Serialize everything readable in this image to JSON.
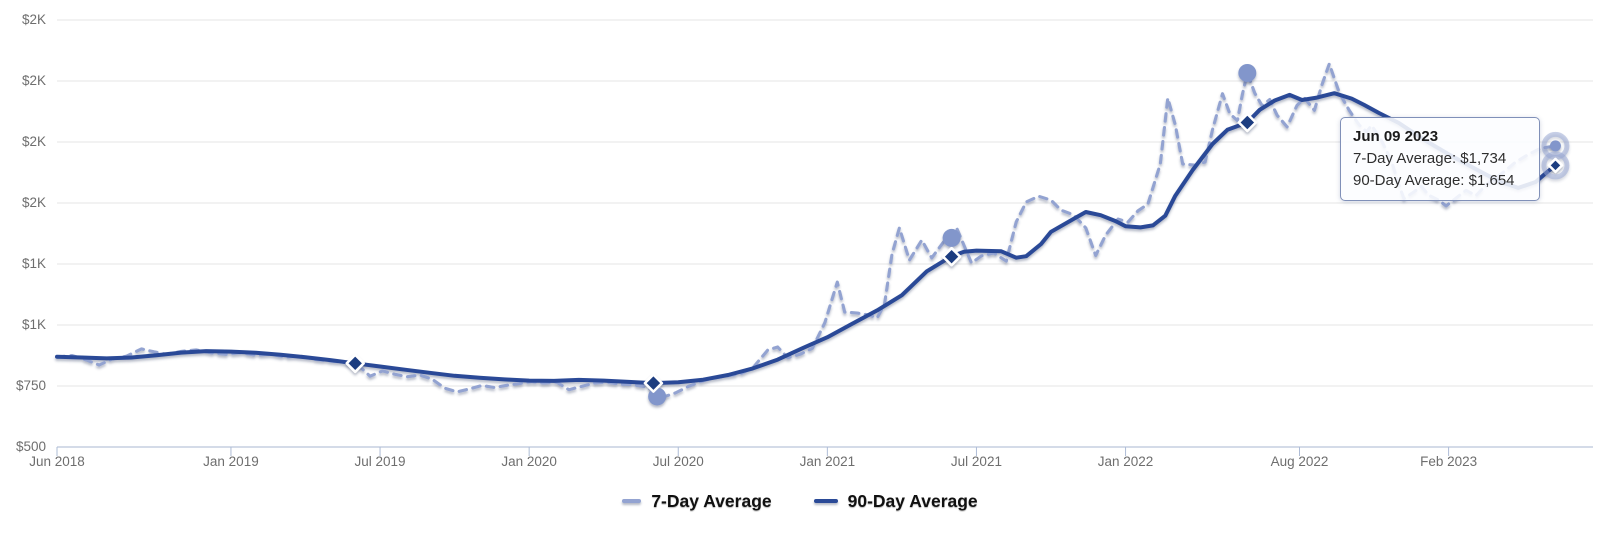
{
  "chart_data": {
    "type": "line",
    "title": "",
    "xlabel": "",
    "ylabel": "",
    "grid": true,
    "legend_position": "bottom-center",
    "x_unit": "months_since_jun_2018",
    "xlim": [
      0,
      61
    ],
    "ylim": [
      500,
      2250
    ],
    "y_axis": {
      "ticks": [
        {
          "label": "$2K",
          "value": 2250
        },
        {
          "label": "$2K",
          "value": 2000
        },
        {
          "label": "$2K",
          "value": 1750
        },
        {
          "label": "$2K",
          "value": 1500
        },
        {
          "label": "$1K",
          "value": 1250
        },
        {
          "label": "$1K",
          "value": 1000
        },
        {
          "label": "$750",
          "value": 750
        },
        {
          "label": "$500",
          "value": 500
        }
      ]
    },
    "x_axis": {
      "ticks": [
        {
          "label": "Jun 2018",
          "m": 0
        },
        {
          "label": "Jan 2019",
          "m": 7
        },
        {
          "label": "Jul 2019",
          "m": 13
        },
        {
          "label": "Jan 2020",
          "m": 19
        },
        {
          "label": "Jul 2020",
          "m": 25
        },
        {
          "label": "Jan 2021",
          "m": 31
        },
        {
          "label": "Jul 2021",
          "m": 37
        },
        {
          "label": "Jan 2022",
          "m": 43
        },
        {
          "label": "Aug 2022",
          "m": 50
        },
        {
          "label": "Feb 2023",
          "m": 56
        }
      ]
    },
    "series": [
      {
        "name": "7-Day Average",
        "style": "dashed",
        "color": "#93a3d1",
        "points": [
          [
            0,
            868
          ],
          [
            0.6,
            875
          ],
          [
            1.2,
            856
          ],
          [
            1.7,
            836
          ],
          [
            2.2,
            860
          ],
          [
            2.8,
            872
          ],
          [
            3.4,
            902
          ],
          [
            3.9,
            890
          ],
          [
            4.4,
            880
          ],
          [
            5,
            892
          ],
          [
            5.6,
            898
          ],
          [
            6.2,
            886
          ],
          [
            6.8,
            880
          ],
          [
            7.4,
            886
          ],
          [
            8,
            876
          ],
          [
            8.6,
            880
          ],
          [
            9.2,
            868
          ],
          [
            9.8,
            873
          ],
          [
            10.4,
            858
          ],
          [
            11,
            852
          ],
          [
            11.6,
            846
          ],
          [
            12.2,
            828
          ],
          [
            12.6,
            790
          ],
          [
            13.1,
            812
          ],
          [
            13.6,
            798
          ],
          [
            14.1,
            788
          ],
          [
            14.6,
            795
          ],
          [
            15.1,
            778
          ],
          [
            15.6,
            741
          ],
          [
            16.1,
            726
          ],
          [
            16.6,
            738
          ],
          [
            17.1,
            752
          ],
          [
            17.6,
            744
          ],
          [
            18.1,
            753
          ],
          [
            18.6,
            760
          ],
          [
            19.1,
            768
          ],
          [
            19.6,
            762
          ],
          [
            20.1,
            766
          ],
          [
            20.6,
            735
          ],
          [
            21.1,
            748
          ],
          [
            21.6,
            762
          ],
          [
            22.1,
            766
          ],
          [
            22.6,
            758
          ],
          [
            23.1,
            756
          ],
          [
            23.6,
            748
          ],
          [
            24,
            733
          ],
          [
            24.4,
            705
          ],
          [
            24.9,
            722
          ],
          [
            25.4,
            748
          ],
          [
            25.9,
            768
          ],
          [
            26.4,
            782
          ],
          [
            27,
            792
          ],
          [
            27.5,
            800
          ],
          [
            28,
            824
          ],
          [
            28.6,
            897
          ],
          [
            29,
            910
          ],
          [
            29.4,
            866
          ],
          [
            29.9,
            880
          ],
          [
            30.4,
            905
          ],
          [
            30.9,
            1010
          ],
          [
            31.4,
            1176
          ],
          [
            31.7,
            1053
          ],
          [
            32.2,
            1049
          ],
          [
            32.7,
            1040
          ],
          [
            33,
            1029
          ],
          [
            33.3,
            1085
          ],
          [
            33.6,
            1290
          ],
          [
            33.9,
            1398
          ],
          [
            34.3,
            1266
          ],
          [
            34.8,
            1348
          ],
          [
            35.2,
            1275
          ],
          [
            35.8,
            1357
          ],
          [
            36.2,
            1398
          ],
          [
            36.8,
            1254
          ],
          [
            37.2,
            1283
          ],
          [
            37.7,
            1295
          ],
          [
            38.2,
            1262
          ],
          [
            38.6,
            1422
          ],
          [
            39,
            1504
          ],
          [
            39.5,
            1528
          ],
          [
            40,
            1512
          ],
          [
            40.4,
            1471
          ],
          [
            40.9,
            1452
          ],
          [
            41.4,
            1398
          ],
          [
            41.8,
            1285
          ],
          [
            42.2,
            1369
          ],
          [
            42.7,
            1434
          ],
          [
            43.1,
            1422
          ],
          [
            43.5,
            1468
          ],
          [
            43.9,
            1496
          ],
          [
            44.4,
            1660
          ],
          [
            44.7,
            1930
          ],
          [
            45,
            1820
          ],
          [
            45.3,
            1660
          ],
          [
            45.8,
            1655
          ],
          [
            46.2,
            1668
          ],
          [
            46.5,
            1800
          ],
          [
            46.9,
            1948
          ],
          [
            47.2,
            1865
          ],
          [
            47.5,
            1838
          ],
          [
            47.7,
            1943
          ],
          [
            47.9,
            2033
          ],
          [
            48.2,
            1950
          ],
          [
            48.5,
            1898
          ],
          [
            48.8,
            1924
          ],
          [
            49.1,
            1860
          ],
          [
            49.5,
            1812
          ],
          [
            49.9,
            1900
          ],
          [
            50.2,
            1930
          ],
          [
            50.6,
            1880
          ],
          [
            50.9,
            1984
          ],
          [
            51.2,
            2070
          ],
          [
            51.6,
            1952
          ],
          [
            52,
            1880
          ],
          [
            52.4,
            1820
          ],
          [
            52.7,
            1792
          ],
          [
            52.9,
            1818
          ],
          [
            53.3,
            1756
          ],
          [
            53.7,
            1672
          ],
          [
            54,
            1574
          ],
          [
            54.2,
            1518
          ],
          [
            54.6,
            1545
          ],
          [
            54.9,
            1568
          ],
          [
            55.2,
            1532
          ],
          [
            55.6,
            1512
          ],
          [
            55.9,
            1488
          ],
          [
            56.3,
            1520
          ],
          [
            56.7,
            1552
          ],
          [
            57.1,
            1530
          ],
          [
            57.5,
            1574
          ],
          [
            57.9,
            1602
          ],
          [
            58.3,
            1634
          ],
          [
            58.7,
            1668
          ],
          [
            59.2,
            1698
          ],
          [
            59.7,
            1724
          ],
          [
            60.3,
            1734
          ]
        ]
      },
      {
        "name": "90-Day Average",
        "style": "solid",
        "color": "#2a4a97",
        "points": [
          [
            0,
            870
          ],
          [
            1,
            867
          ],
          [
            2,
            863
          ],
          [
            3,
            867
          ],
          [
            4,
            876
          ],
          [
            5,
            887
          ],
          [
            6,
            893
          ],
          [
            7,
            891
          ],
          [
            8,
            886
          ],
          [
            9,
            878
          ],
          [
            10,
            868
          ],
          [
            11,
            856
          ],
          [
            12,
            843
          ],
          [
            13,
            830
          ],
          [
            14,
            817
          ],
          [
            15,
            804
          ],
          [
            16,
            792
          ],
          [
            17,
            784
          ],
          [
            18,
            777
          ],
          [
            19,
            772
          ],
          [
            20,
            771
          ],
          [
            21,
            775
          ],
          [
            22,
            772
          ],
          [
            23,
            767
          ],
          [
            24,
            762
          ],
          [
            25,
            765
          ],
          [
            26,
            776
          ],
          [
            27,
            795
          ],
          [
            28,
            822
          ],
          [
            29,
            858
          ],
          [
            30,
            905
          ],
          [
            31,
            950
          ],
          [
            32,
            1005
          ],
          [
            33,
            1060
          ],
          [
            34,
            1122
          ],
          [
            35,
            1220
          ],
          [
            36,
            1282
          ],
          [
            36.5,
            1300
          ],
          [
            37,
            1305
          ],
          [
            38,
            1302
          ],
          [
            38.6,
            1276
          ],
          [
            39,
            1282
          ],
          [
            39.6,
            1332
          ],
          [
            40,
            1382
          ],
          [
            41,
            1440
          ],
          [
            41.4,
            1463
          ],
          [
            42,
            1450
          ],
          [
            42.6,
            1426
          ],
          [
            43,
            1405
          ],
          [
            43.6,
            1400
          ],
          [
            44.1,
            1408
          ],
          [
            44.6,
            1448
          ],
          [
            45,
            1530
          ],
          [
            45.7,
            1635
          ],
          [
            46.5,
            1742
          ],
          [
            47.1,
            1800
          ],
          [
            47.9,
            1830
          ],
          [
            48.4,
            1882
          ],
          [
            49,
            1920
          ],
          [
            49.6,
            1943
          ],
          [
            50.1,
            1922
          ],
          [
            50.7,
            1932
          ],
          [
            51.4,
            1950
          ],
          [
            52.1,
            1928
          ],
          [
            52.6,
            1902
          ],
          [
            53.2,
            1869
          ],
          [
            54,
            1828
          ],
          [
            55,
            1760
          ],
          [
            56,
            1700
          ],
          [
            57,
            1644
          ],
          [
            58,
            1590
          ],
          [
            58.8,
            1562
          ],
          [
            59.5,
            1586
          ],
          [
            60,
            1630
          ],
          [
            60.3,
            1654
          ]
        ]
      }
    ],
    "markers": [
      {
        "series": "7-Day Average",
        "shape": "circle",
        "m": 24.15,
        "value": 707,
        "highlight": false
      },
      {
        "series": "7-Day Average",
        "shape": "circle",
        "m": 36,
        "value": 1357,
        "highlight": false
      },
      {
        "series": "7-Day Average",
        "shape": "circle",
        "m": 47.9,
        "value": 2033,
        "highlight": false
      },
      {
        "series": "7-Day Average",
        "shape": "circle",
        "m": 60.3,
        "value": 1734,
        "highlight": true
      },
      {
        "series": "90-Day Average",
        "shape": "diamond",
        "m": 12,
        "value": 843,
        "highlight": false
      },
      {
        "series": "90-Day Average",
        "shape": "diamond",
        "m": 24,
        "value": 762,
        "highlight": false
      },
      {
        "series": "90-Day Average",
        "shape": "diamond",
        "m": 36,
        "value": 1280,
        "highlight": false
      },
      {
        "series": "90-Day Average",
        "shape": "diamond",
        "m": 47.9,
        "value": 1830,
        "highlight": false
      },
      {
        "series": "90-Day Average",
        "shape": "diamond",
        "m": 60.3,
        "value": 1654,
        "highlight": true
      }
    ],
    "tooltip": {
      "title": "Jun 09 2023",
      "lines": [
        "7-Day Average: $1,734",
        "90-Day Average: $1,654"
      ]
    },
    "colors": {
      "series_7day": "#93a3d1",
      "series_90day": "#2a4a97",
      "marker_diamond_fill": "#1e3c80",
      "marker_circle_fill": "#8296cb",
      "marker_halo": "rgba(147,163,209,0.5)",
      "gridline": "#e4e4e4",
      "axis_line": "#c5cfe1",
      "tick_mark": "#aebcd6",
      "axis_text": "#6e6e6e",
      "legend_text": "#101010",
      "tooltip_border": "#8090b8"
    }
  }
}
